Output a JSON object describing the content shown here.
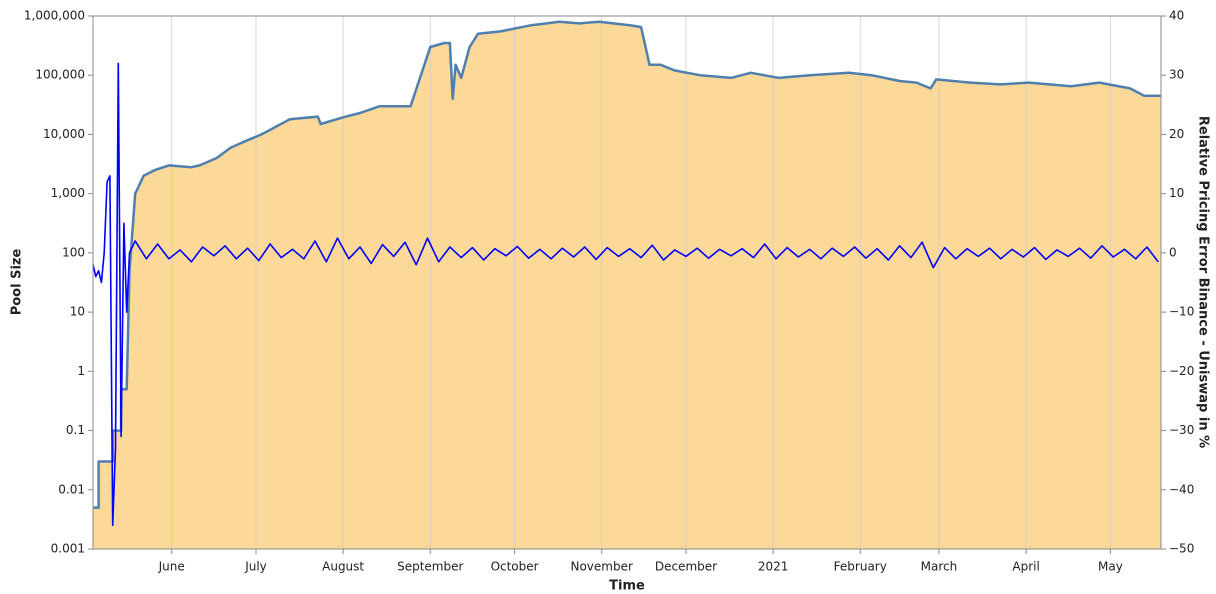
{
  "chart_data": {
    "type": "line",
    "xlabel": "Time",
    "ylabel": "Pool Size",
    "y2label": "Relative Pricing Error Binance - Uniswap in %",
    "log_scale": true,
    "grid": true,
    "xlim": [
      0,
      380
    ],
    "xticks": [
      {
        "value": 28,
        "label": "June"
      },
      {
        "value": 58,
        "label": "July"
      },
      {
        "value": 89,
        "label": "August"
      },
      {
        "value": 120,
        "label": "September"
      },
      {
        "value": 150,
        "label": "October"
      },
      {
        "value": 181,
        "label": "November"
      },
      {
        "value": 211,
        "label": "December"
      },
      {
        "value": 242,
        "label": "2021"
      },
      {
        "value": 273,
        "label": "February"
      },
      {
        "value": 301,
        "label": "March"
      },
      {
        "value": 332,
        "label": "April"
      },
      {
        "value": 362,
        "label": "May"
      }
    ],
    "ylim": [
      0.001,
      1000000
    ],
    "yticks": [
      0.001,
      0.01,
      0.1,
      1,
      10,
      100,
      {
        "value": 1000,
        "label": "1,000"
      },
      {
        "value": 10000,
        "label": "10,000"
      },
      {
        "value": 100000,
        "label": "100,000"
      },
      {
        "value": 1000000,
        "label": "1,000,000"
      }
    ],
    "y2lim": [
      -50,
      40
    ],
    "y2ticks": [
      {
        "value": -50,
        "label": "−50"
      },
      {
        "value": -40,
        "label": "−40"
      },
      {
        "value": -30,
        "label": "−30"
      },
      {
        "value": -20,
        "label": "−20"
      },
      {
        "value": -10,
        "label": "−10"
      },
      0,
      10,
      20,
      30,
      40
    ],
    "series": [
      {
        "kind": "area",
        "color": "#4f7fae",
        "fill": "#fcd899",
        "x": [
          0,
          2,
          2,
          7,
          7,
          10,
          10,
          12,
          13,
          15,
          18,
          22,
          27,
          35,
          38,
          44,
          49,
          55,
          60,
          70,
          80,
          81,
          90,
          95,
          102,
          113,
          120,
          125,
          127,
          128,
          129,
          131,
          134,
          137,
          145,
          156,
          166,
          173,
          180,
          191,
          195,
          198,
          202,
          207,
          216,
          227,
          234,
          244,
          255,
          269,
          277,
          287,
          293,
          298,
          300,
          312,
          323,
          333,
          348,
          358,
          369,
          374,
          380
        ],
        "values": [
          0.005,
          0.005,
          0.03,
          0.03,
          0.1,
          0.1,
          0.5,
          0.5,
          50,
          1000,
          2000,
          2500,
          3000,
          2800,
          3000,
          4000,
          6000,
          8000,
          10000,
          18000,
          20000,
          15000,
          20000,
          23000,
          30000,
          30000,
          300000,
          350000,
          350000,
          40000,
          150000,
          90000,
          300000,
          500000,
          550000,
          700000,
          800000,
          750000,
          800000,
          700000,
          650000,
          150000,
          150000,
          120000,
          100000,
          90000,
          110000,
          90000,
          100000,
          110000,
          100000,
          80000,
          75000,
          60000,
          85000,
          75000,
          70000,
          75000,
          65000,
          75000,
          60000,
          45000,
          45000
        ]
      },
      {
        "kind": "line",
        "axis": "y2",
        "color": "#0000ff",
        "x": [
          0,
          1,
          2,
          3,
          4,
          5,
          6,
          7,
          8,
          9,
          10,
          11,
          12,
          13,
          14,
          15,
          19,
          23,
          27,
          31,
          35,
          39,
          43,
          47,
          51,
          55,
          59,
          63,
          67,
          71,
          75,
          79,
          83,
          87,
          91,
          95,
          99,
          103,
          107,
          111,
          115,
          119,
          123,
          127,
          131,
          135,
          139,
          143,
          147,
          151,
          155,
          159,
          163,
          167,
          171,
          175,
          179,
          183,
          187,
          191,
          195,
          199,
          203,
          207,
          211,
          215,
          219,
          223,
          227,
          231,
          235,
          239,
          243,
          247,
          251,
          255,
          259,
          263,
          267,
          271,
          275,
          279,
          283,
          287,
          291,
          295,
          299,
          303,
          307,
          311,
          315,
          319,
          323,
          327,
          331,
          335,
          339,
          343,
          347,
          351,
          355,
          359,
          363,
          367,
          371,
          375,
          379
        ],
        "values": [
          -2,
          -4,
          -3,
          -5,
          0,
          12,
          13,
          -46,
          -33,
          32,
          -31,
          5,
          -10,
          0,
          1,
          2,
          -1,
          1.5,
          -1,
          0.5,
          -1.5,
          1,
          -0.5,
          1.2,
          -1,
          0.8,
          -1.3,
          1.5,
          -0.8,
          0.6,
          -1,
          2,
          -1.5,
          2.5,
          -1,
          1,
          -1.8,
          1.4,
          -0.6,
          1.8,
          -2,
          2.5,
          -1.5,
          1,
          -0.8,
          0.9,
          -1.2,
          0.7,
          -0.5,
          1.1,
          -0.9,
          0.6,
          -1,
          0.8,
          -0.7,
          1,
          -1.1,
          0.9,
          -0.6,
          0.7,
          -0.8,
          1.3,
          -1.2,
          0.5,
          -0.6,
          0.8,
          -0.9,
          0.6,
          -0.5,
          0.7,
          -0.8,
          1.5,
          -1,
          0.9,
          -0.7,
          0.6,
          -1,
          0.8,
          -0.6,
          1,
          -0.9,
          0.7,
          -1.2,
          1.2,
          -0.8,
          1.8,
          -2.5,
          0.9,
          -1,
          0.7,
          -0.6,
          0.8,
          -1,
          0.6,
          -0.7,
          0.9,
          -1.1,
          0.5,
          -0.6,
          0.8,
          -0.9,
          1.2,
          -0.7,
          0.6,
          -1,
          1,
          -1.5
        ]
      }
    ]
  }
}
